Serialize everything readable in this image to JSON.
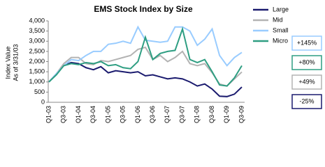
{
  "chart_data": {
    "type": "line",
    "title": "EMS Stock Index by Size",
    "y_label": [
      "Index Value",
      "As of 3/31/03"
    ],
    "categories": [
      "Q1-03",
      null,
      "Q3-03",
      null,
      "Q1-04",
      null,
      "Q3-04",
      null,
      "Q1-05",
      null,
      "Q3-05",
      null,
      "Q1-06",
      null,
      "Q3-06",
      null,
      "Q1-07",
      null,
      "Q3-07",
      null,
      "Q1-08",
      null,
      "Q3-08",
      null,
      "Q1-09",
      null,
      "Q3-09"
    ],
    "ylim": [
      0,
      4000
    ],
    "yticks": [
      0,
      500,
      {
        "value": 1000,
        "label": "1,000"
      },
      {
        "value": 1500,
        "label": "1,500"
      },
      {
        "value": 2000,
        "label": "2,000"
      },
      {
        "value": 2500,
        "label": "2,500"
      },
      {
        "value": 3000,
        "label": "3,000"
      },
      {
        "value": 3500,
        "label": "3,500"
      },
      {
        "value": 4000,
        "label": "4,000"
      }
    ],
    "series": [
      {
        "name": "Large",
        "color": "#1a1a6e",
        "change": "-25%",
        "values": [
          1000,
          1400,
          1800,
          1950,
          1900,
          1700,
          1600,
          1750,
          1450,
          1550,
          1500,
          1450,
          1500,
          1300,
          1350,
          1250,
          1150,
          1200,
          1150,
          1000,
          800,
          900,
          650,
          300,
          280,
          400,
          750
        ]
      },
      {
        "name": "Mid",
        "color": "#b3b3b3",
        "change": "+49%",
        "values": [
          1000,
          1400,
          1900,
          2200,
          2200,
          1900,
          1850,
          2050,
          2000,
          2100,
          2200,
          2300,
          2600,
          2700,
          2100,
          2300,
          2000,
          2200,
          2500,
          1900,
          1800,
          1900,
          1450,
          900,
          800,
          1150,
          1490
        ]
      },
      {
        "name": "Small",
        "color": "#99ccff",
        "change": "+145%",
        "values": [
          1000,
          1400,
          1800,
          2100,
          2050,
          2300,
          2500,
          2500,
          2850,
          2900,
          3000,
          2900,
          3700,
          3050,
          3000,
          2950,
          3000,
          3700,
          3700,
          3500,
          2800,
          3100,
          3600,
          2300,
          1800,
          2200,
          2450
        ]
      },
      {
        "name": "Micro",
        "color": "#2e9e82",
        "change": "+80%",
        "values": [
          1000,
          1350,
          1800,
          1900,
          1850,
          1950,
          1900,
          2000,
          1800,
          1850,
          1700,
          1650,
          2000,
          3200,
          2100,
          2400,
          2500,
          2550,
          3600,
          2100,
          1950,
          2100,
          1500,
          850,
          800,
          1200,
          1800
        ]
      }
    ],
    "box_order": [
      2,
      3,
      1,
      0
    ]
  }
}
